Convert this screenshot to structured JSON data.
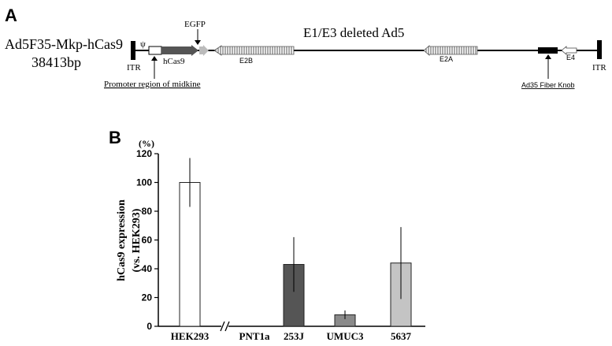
{
  "panel_a": {
    "letter": "A",
    "construct_name": "Ad5F35-Mkp-hCas9",
    "construct_size": "38413bp",
    "backbone_label": "E1/E3 deleted Ad5",
    "psi": "ψ",
    "egfp": "EGFP",
    "hcas9": "hCas9",
    "e2b": "E2B",
    "e2a": "E2A",
    "e4": "E4",
    "itr_left": "ITR",
    "itr_right": "ITR",
    "promoter": "Promoter region of midkine",
    "fiber": "Ad35 Fiber Knob"
  },
  "panel_b": {
    "letter": "B"
  },
  "chart_data": {
    "type": "bar",
    "categories": [
      "HEK293",
      "PNT1a",
      "253J",
      "UMUC3",
      "5637"
    ],
    "values": [
      100,
      0,
      43,
      8,
      44
    ],
    "errors": [
      17,
      0,
      19,
      3,
      25
    ],
    "bar_colors": [
      "#ffffff",
      "#ffffff",
      "#555555",
      "#8a8a8a",
      "#c4c4c4"
    ],
    "ylabel_line1": "hCas9 expression",
    "ylabel_line2": "(vs. HEK293)",
    "yunit": "(%)",
    "ylim": [
      0,
      120
    ],
    "yticks": [
      0,
      20,
      40,
      60,
      80,
      100,
      120
    ],
    "axis_break_after": "HEK293",
    "grid": false
  }
}
